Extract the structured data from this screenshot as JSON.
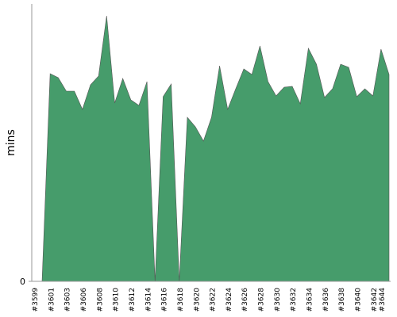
{
  "chart_data": {
    "type": "area",
    "y_label": "mins",
    "categories": [
      "#3599",
      null,
      "#3601",
      null,
      "#3603",
      null,
      "#3606",
      null,
      "#3608",
      null,
      "#3610",
      null,
      "#3612",
      null,
      "#3614",
      null,
      "#3616",
      null,
      "#3618",
      null,
      "#3620",
      null,
      "#3622",
      null,
      "#3624",
      null,
      "#3626",
      null,
      "#3628",
      null,
      "#3630",
      null,
      "#3632",
      null,
      "#3634",
      null,
      "#3636",
      null,
      "#3638",
      null,
      "#3640",
      null,
      "#3642",
      "#3644"
    ],
    "values": [
      0,
      26.2,
      25.7,
      24.0,
      24.0,
      21.7,
      24.8,
      25.9,
      33.5,
      22.5,
      25.6,
      22.9,
      22.2,
      25.2,
      0,
      23.3,
      24.9,
      0,
      20.7,
      19.5,
      17.7,
      20.7,
      27.2,
      21.7,
      24.3,
      26.8,
      26.1,
      29.7,
      25.2,
      23.4,
      24.5,
      24.6,
      22.4,
      29.4,
      27.4,
      23.2,
      24.3,
      27.4,
      27.0,
      23.3,
      24.3,
      23.4,
      29.3,
      26.1
    ],
    "color": "#469c6b",
    "ylim": [
      0,
      35
    ],
    "yticks": [
      0
    ]
  }
}
